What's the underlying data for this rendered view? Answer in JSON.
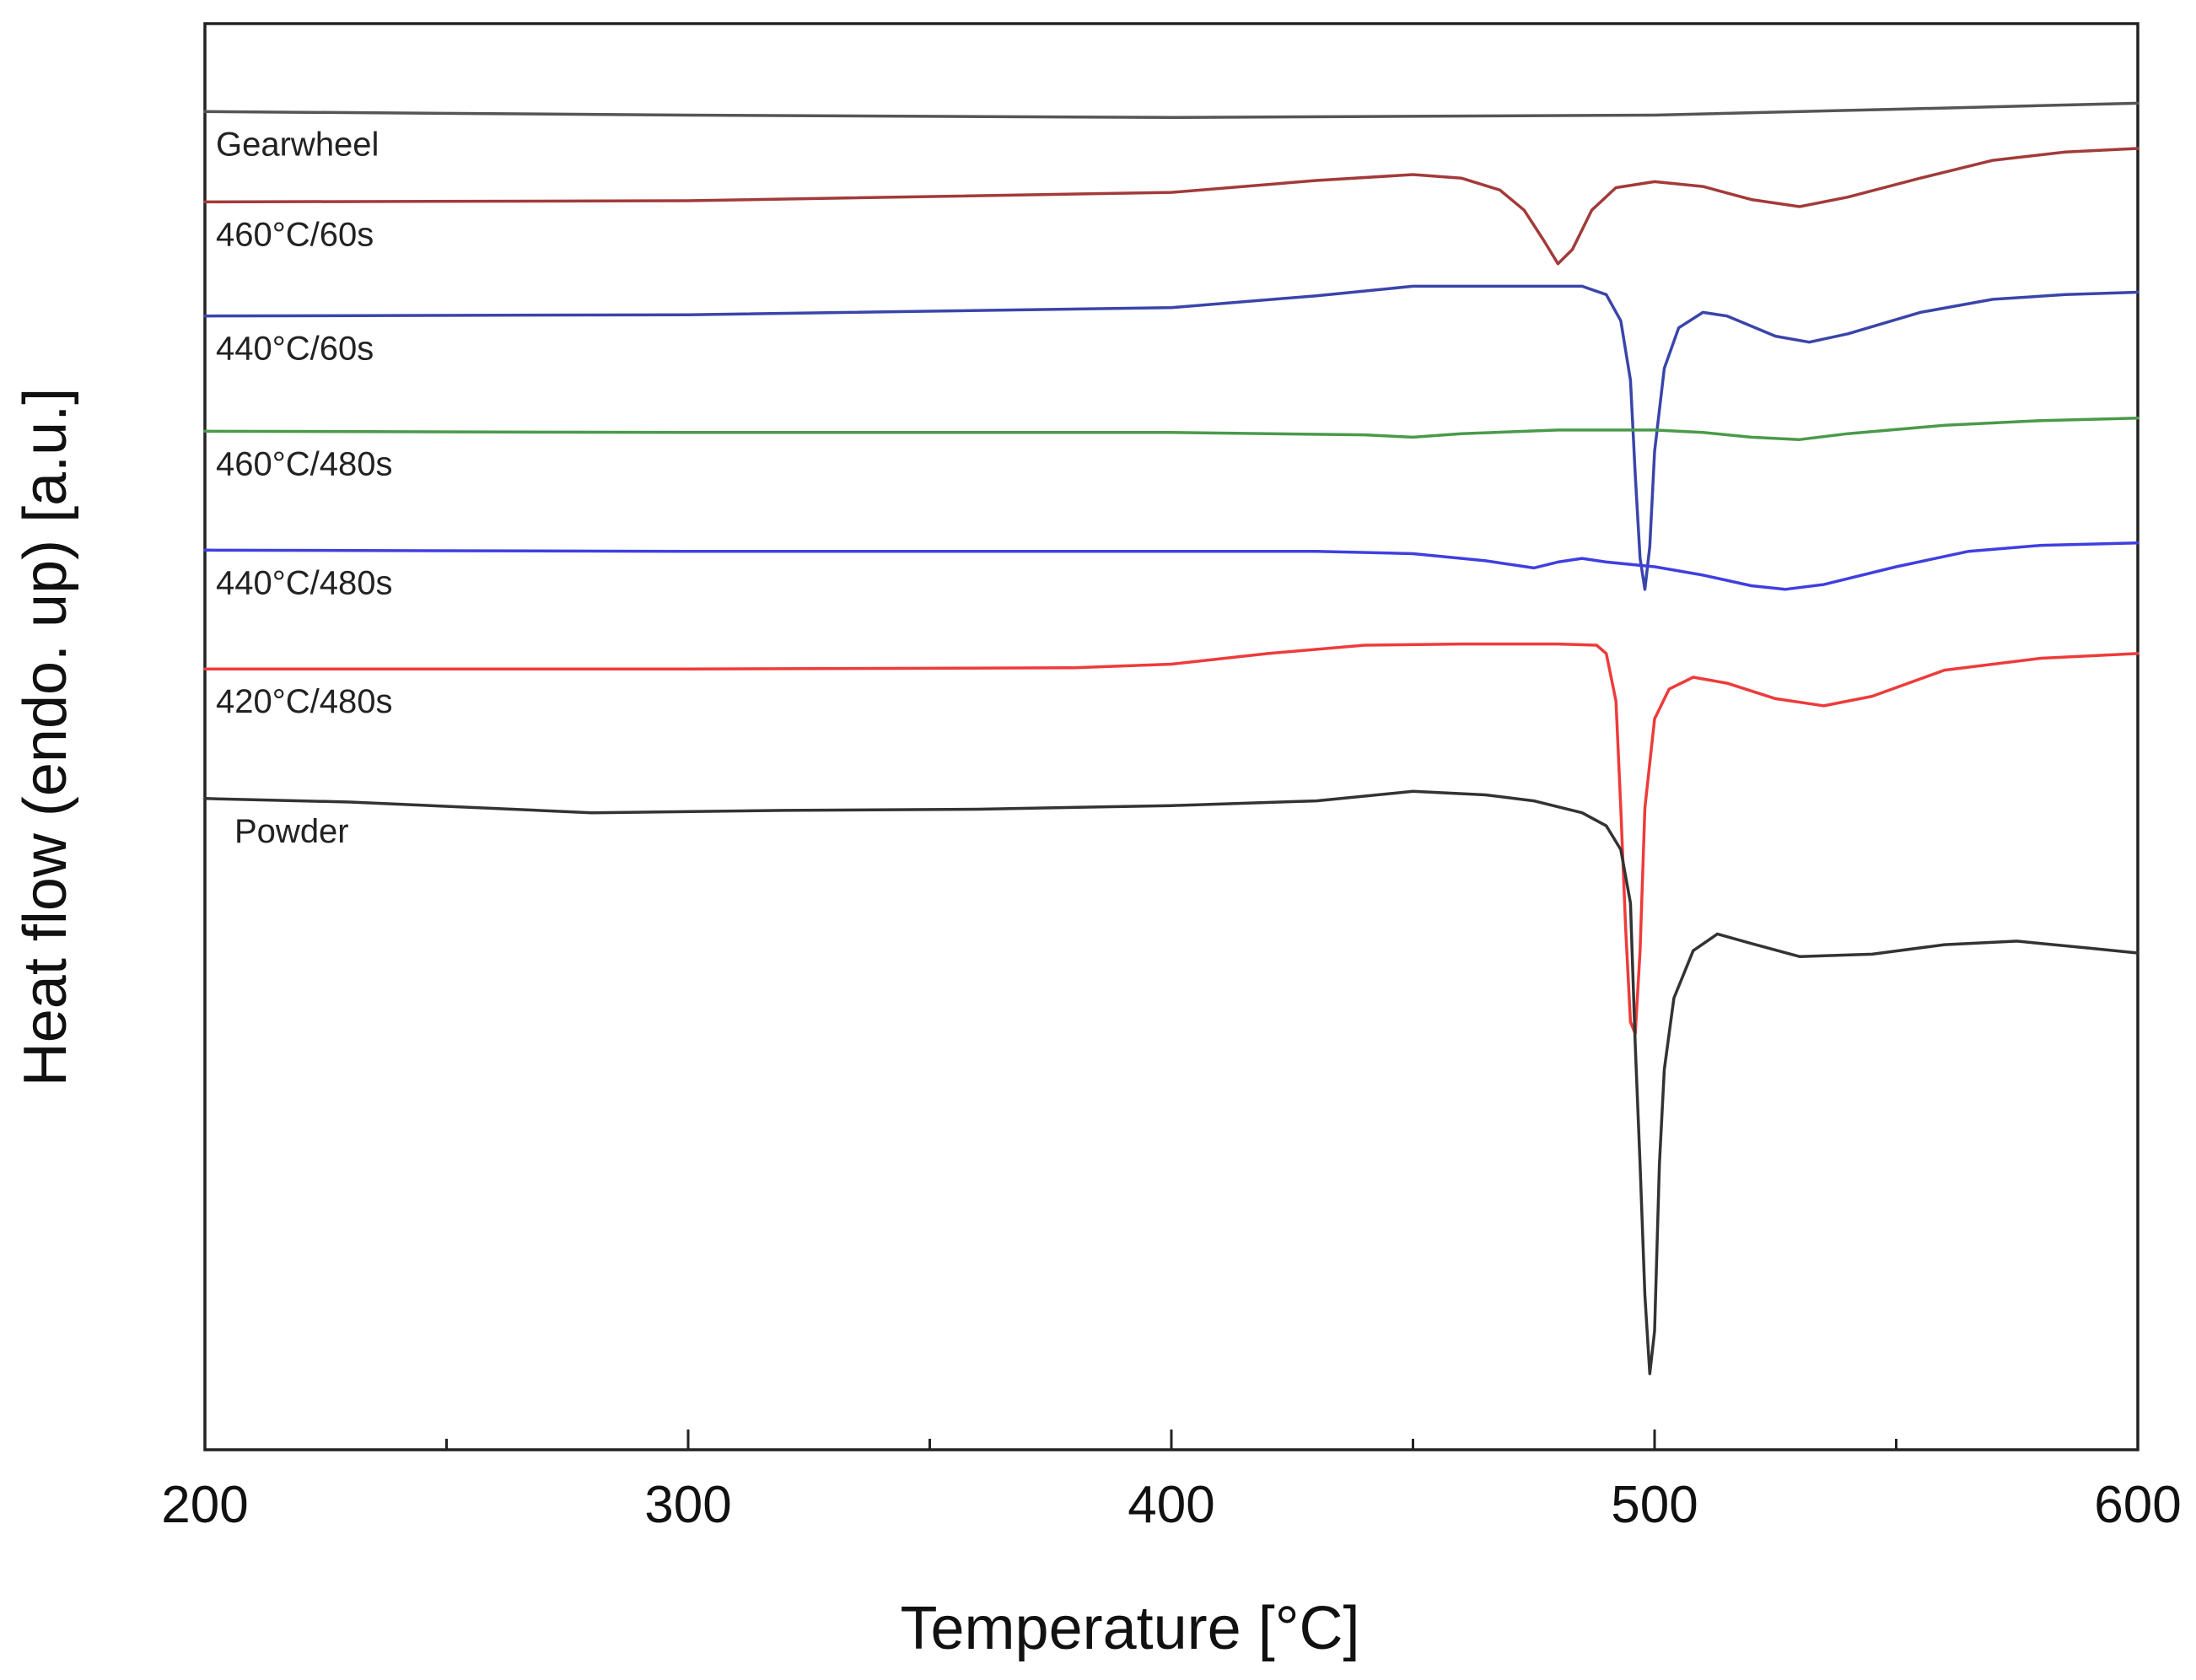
{
  "chart_data": {
    "type": "line",
    "title": "",
    "xlabel": "Temperature [°C]",
    "ylabel": "Heat flow (endo. up) [a.u.]",
    "xlim": [
      200,
      600
    ],
    "ylim": [
      -30,
      90
    ],
    "xticks": [
      200,
      300,
      400,
      500,
      600
    ],
    "xtick_labels": [
      "200",
      "300",
      "400",
      "500",
      "600"
    ],
    "minor_xticks": [
      250,
      350,
      450,
      550
    ],
    "grid": false,
    "legend": "inline labels at left",
    "series": [
      {
        "name": "Gearwheel",
        "color": "#555555",
        "points": [
          [
            200,
            82.6
          ],
          [
            300,
            82.3
          ],
          [
            400,
            82.1
          ],
          [
            500,
            82.3
          ],
          [
            550,
            82.8
          ],
          [
            600,
            83.3
          ]
        ]
      },
      {
        "name": "460°C/60s",
        "color": "#a33a3a",
        "points": [
          [
            200,
            75
          ],
          [
            300,
            75.1
          ],
          [
            400,
            75.8
          ],
          [
            430,
            76.8
          ],
          [
            450,
            77.3
          ],
          [
            460,
            77
          ],
          [
            468,
            76
          ],
          [
            473,
            74.3
          ],
          [
            477,
            71.8
          ],
          [
            480,
            69.8
          ],
          [
            483,
            71
          ],
          [
            487,
            74.3
          ],
          [
            492,
            76.2
          ],
          [
            500,
            76.7
          ],
          [
            510,
            76.3
          ],
          [
            520,
            75.2
          ],
          [
            530,
            74.6
          ],
          [
            540,
            75.4
          ],
          [
            555,
            77
          ],
          [
            570,
            78.5
          ],
          [
            585,
            79.2
          ],
          [
            600,
            79.5
          ]
        ]
      },
      {
        "name": "440°C/60s",
        "color": "#3a45aa",
        "points": [
          [
            200,
            65.4
          ],
          [
            300,
            65.5
          ],
          [
            400,
            66.1
          ],
          [
            430,
            67.1
          ],
          [
            450,
            67.9
          ],
          [
            470,
            67.9
          ],
          [
            485,
            67.9
          ],
          [
            490,
            67.2
          ],
          [
            493,
            65
          ],
          [
            495,
            60
          ],
          [
            496,
            52
          ],
          [
            497,
            45
          ],
          [
            498,
            42.4
          ],
          [
            499,
            46
          ],
          [
            500,
            54
          ],
          [
            502,
            61
          ],
          [
            505,
            64.4
          ],
          [
            510,
            65.7
          ],
          [
            515,
            65.4
          ],
          [
            525,
            63.7
          ],
          [
            532,
            63.2
          ],
          [
            540,
            63.9
          ],
          [
            555,
            65.7
          ],
          [
            570,
            66.8
          ],
          [
            585,
            67.2
          ],
          [
            600,
            67.4
          ]
        ]
      },
      {
        "name": "460°C/480s",
        "color": "#4a9a4a",
        "points": [
          [
            200,
            55.7
          ],
          [
            300,
            55.6
          ],
          [
            400,
            55.6
          ],
          [
            440,
            55.4
          ],
          [
            450,
            55.2
          ],
          [
            460,
            55.5
          ],
          [
            480,
            55.8
          ],
          [
            500,
            55.8
          ],
          [
            510,
            55.6
          ],
          [
            520,
            55.2
          ],
          [
            530,
            55
          ],
          [
            540,
            55.5
          ],
          [
            560,
            56.2
          ],
          [
            580,
            56.6
          ],
          [
            600,
            56.8
          ]
        ]
      },
      {
        "name": "440°C/480s",
        "color": "#3f3fe0",
        "points": [
          [
            200,
            45.7
          ],
          [
            300,
            45.6
          ],
          [
            400,
            45.6
          ],
          [
            430,
            45.6
          ],
          [
            450,
            45.4
          ],
          [
            465,
            44.8
          ],
          [
            475,
            44.2
          ],
          [
            480,
            44.7
          ],
          [
            485,
            45
          ],
          [
            490,
            44.7
          ],
          [
            500,
            44.3
          ],
          [
            510,
            43.6
          ],
          [
            520,
            42.7
          ],
          [
            527,
            42.4
          ],
          [
            535,
            42.8
          ],
          [
            550,
            44.3
          ],
          [
            565,
            45.6
          ],
          [
            580,
            46.1
          ],
          [
            600,
            46.3
          ]
        ]
      },
      {
        "name": "420°C/480s",
        "color": "#ee3b3b",
        "points": [
          [
            200,
            35.7
          ],
          [
            300,
            35.7
          ],
          [
            380,
            35.8
          ],
          [
            400,
            36.1
          ],
          [
            420,
            37
          ],
          [
            440,
            37.7
          ],
          [
            460,
            37.8
          ],
          [
            480,
            37.8
          ],
          [
            488,
            37.7
          ],
          [
            490,
            37
          ],
          [
            492,
            33
          ],
          [
            493,
            24
          ],
          [
            494,
            14
          ],
          [
            495,
            6
          ],
          [
            496,
            5
          ],
          [
            497,
            12
          ],
          [
            498,
            24
          ],
          [
            500,
            31.5
          ],
          [
            503,
            34
          ],
          [
            508,
            35
          ],
          [
            515,
            34.5
          ],
          [
            525,
            33.2
          ],
          [
            535,
            32.6
          ],
          [
            545,
            33.4
          ],
          [
            560,
            35.6
          ],
          [
            580,
            36.6
          ],
          [
            600,
            37
          ]
        ]
      },
      {
        "name": "Powder",
        "color": "#333333",
        "points": [
          [
            200,
            24.8
          ],
          [
            230,
            24.5
          ],
          [
            280,
            23.6
          ],
          [
            320,
            23.8
          ],
          [
            360,
            23.9
          ],
          [
            400,
            24.2
          ],
          [
            430,
            24.6
          ],
          [
            450,
            25.4
          ],
          [
            465,
            25.1
          ],
          [
            475,
            24.6
          ],
          [
            485,
            23.6
          ],
          [
            490,
            22.5
          ],
          [
            493,
            20.5
          ],
          [
            495,
            16
          ],
          [
            496,
            4
          ],
          [
            497,
            -6
          ],
          [
            498,
            -17
          ],
          [
            499,
            -23.6
          ],
          [
            500,
            -20
          ],
          [
            501,
            -6
          ],
          [
            502,
            2
          ],
          [
            504,
            8
          ],
          [
            508,
            12
          ],
          [
            513,
            13.4
          ],
          [
            520,
            12.6
          ],
          [
            530,
            11.5
          ],
          [
            545,
            11.7
          ],
          [
            560,
            12.5
          ],
          [
            575,
            12.8
          ],
          [
            590,
            12.2
          ],
          [
            600,
            11.8
          ]
        ]
      }
    ]
  }
}
